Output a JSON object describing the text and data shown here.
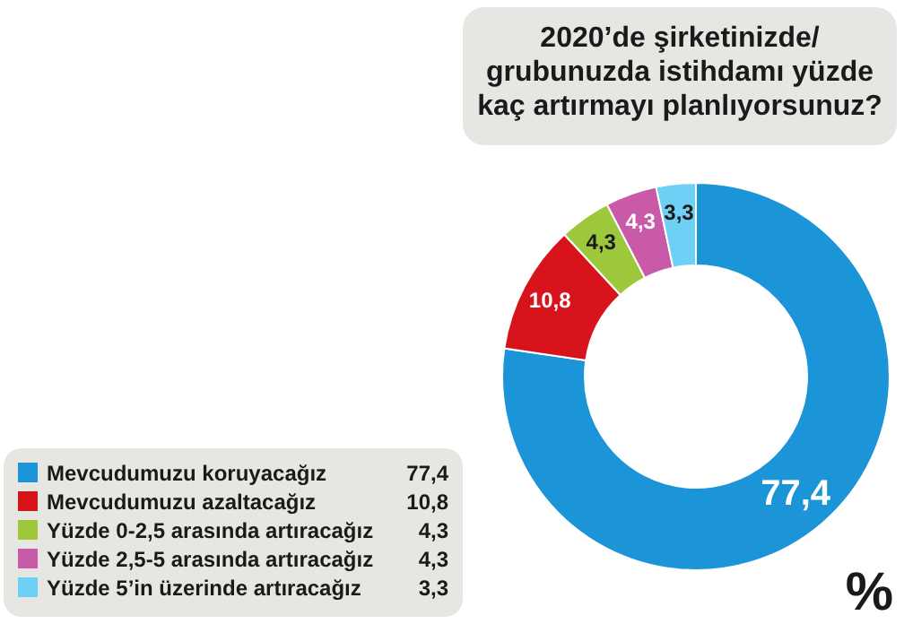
{
  "chart_data": {
    "type": "donut",
    "title": "2020’de şirketinizde/ grubunuzda istihdamı yüzde kaç artırmayı planlıyorsunuz?",
    "categories": [
      "Mevcudumuzu koruyacağız",
      "Mevcudumuzu azaltacağız",
      "Yüzde 0-2,5 arasında artıracağız",
      "Yüzde 2,5-5 arasında artıracağız",
      "Yüzde 5’in üzerinde artıracağız"
    ],
    "values": [
      77.4,
      10.8,
      4.3,
      4.3,
      3.3
    ],
    "colors": [
      "#1b95d8",
      "#d7141c",
      "#9dc83c",
      "#c95aa8",
      "#6fd0f5"
    ],
    "value_labels": [
      "77,4",
      "10,8",
      "4,3",
      "4,3",
      "3,3"
    ],
    "legend": "bottom left",
    "annotations": [
      "%"
    ]
  }
}
